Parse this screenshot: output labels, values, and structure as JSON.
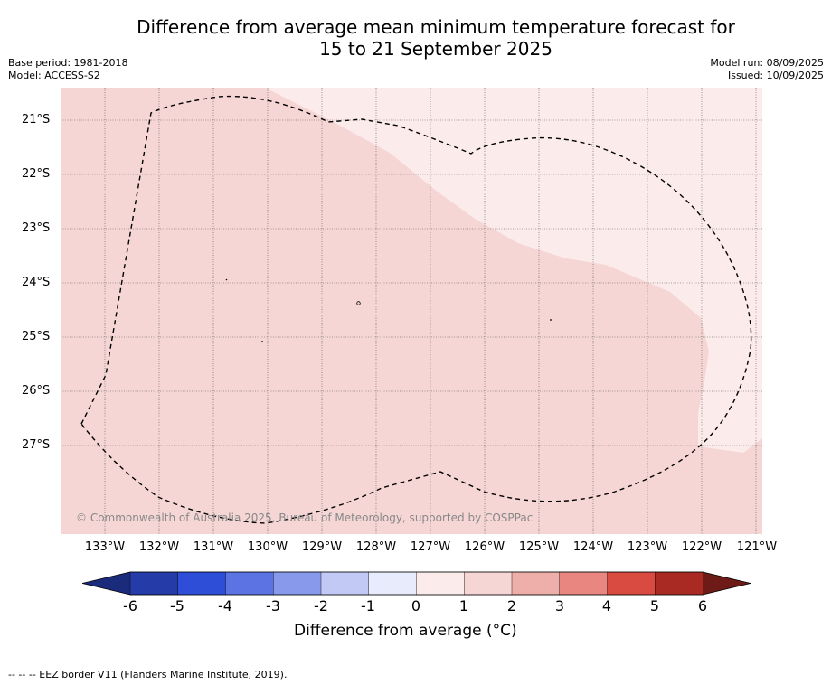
{
  "title_line1": "Difference from average mean minimum temperature forecast for",
  "title_line2": "15 to 21 September 2025",
  "base_period": "Base period: 1981-2018",
  "model": "Model: ACCESS-S2",
  "model_run": "Model run: 08/09/2025",
  "issued": "Issued: 10/09/2025",
  "copyright": "© Commonwealth of Australia 2025, Bureau of Meteorology, supported by COSPPac",
  "lat_labels": [
    "21°S",
    "22°S",
    "23°S",
    "24°S",
    "25°S",
    "26°S",
    "27°S"
  ],
  "lon_labels": [
    "133°W",
    "132°W",
    "131°W",
    "130°W",
    "129°W",
    "128°W",
    "127°W",
    "126°W",
    "125°W",
    "124°W",
    "123°W",
    "122°W",
    "121°W"
  ],
  "colorbar": {
    "label": "Difference from average (°C)",
    "ticks": [
      "-6",
      "-5",
      "-4",
      "-3",
      "-2",
      "-1",
      "0",
      "1",
      "2",
      "3",
      "4",
      "5",
      "6"
    ],
    "colors": [
      "#243ba8",
      "#2f4ed8",
      "#5b73e3",
      "#8899ec",
      "#c2c9f5",
      "#e8ebfb",
      "#fbeceb",
      "#f5d6d5",
      "#eeaea9",
      "#e8867f",
      "#d94b40",
      "#a82a22"
    ],
    "under_color": "#1b2b7c",
    "over_color": "#6e1b17"
  },
  "map_fill": {
    "value_range_1_2": "#f5d6d5",
    "value_range_0_1": "#fbeceb"
  },
  "footer": "-- -- -- EEZ border V11 (Flanders Marine Institute, 2019)."
}
